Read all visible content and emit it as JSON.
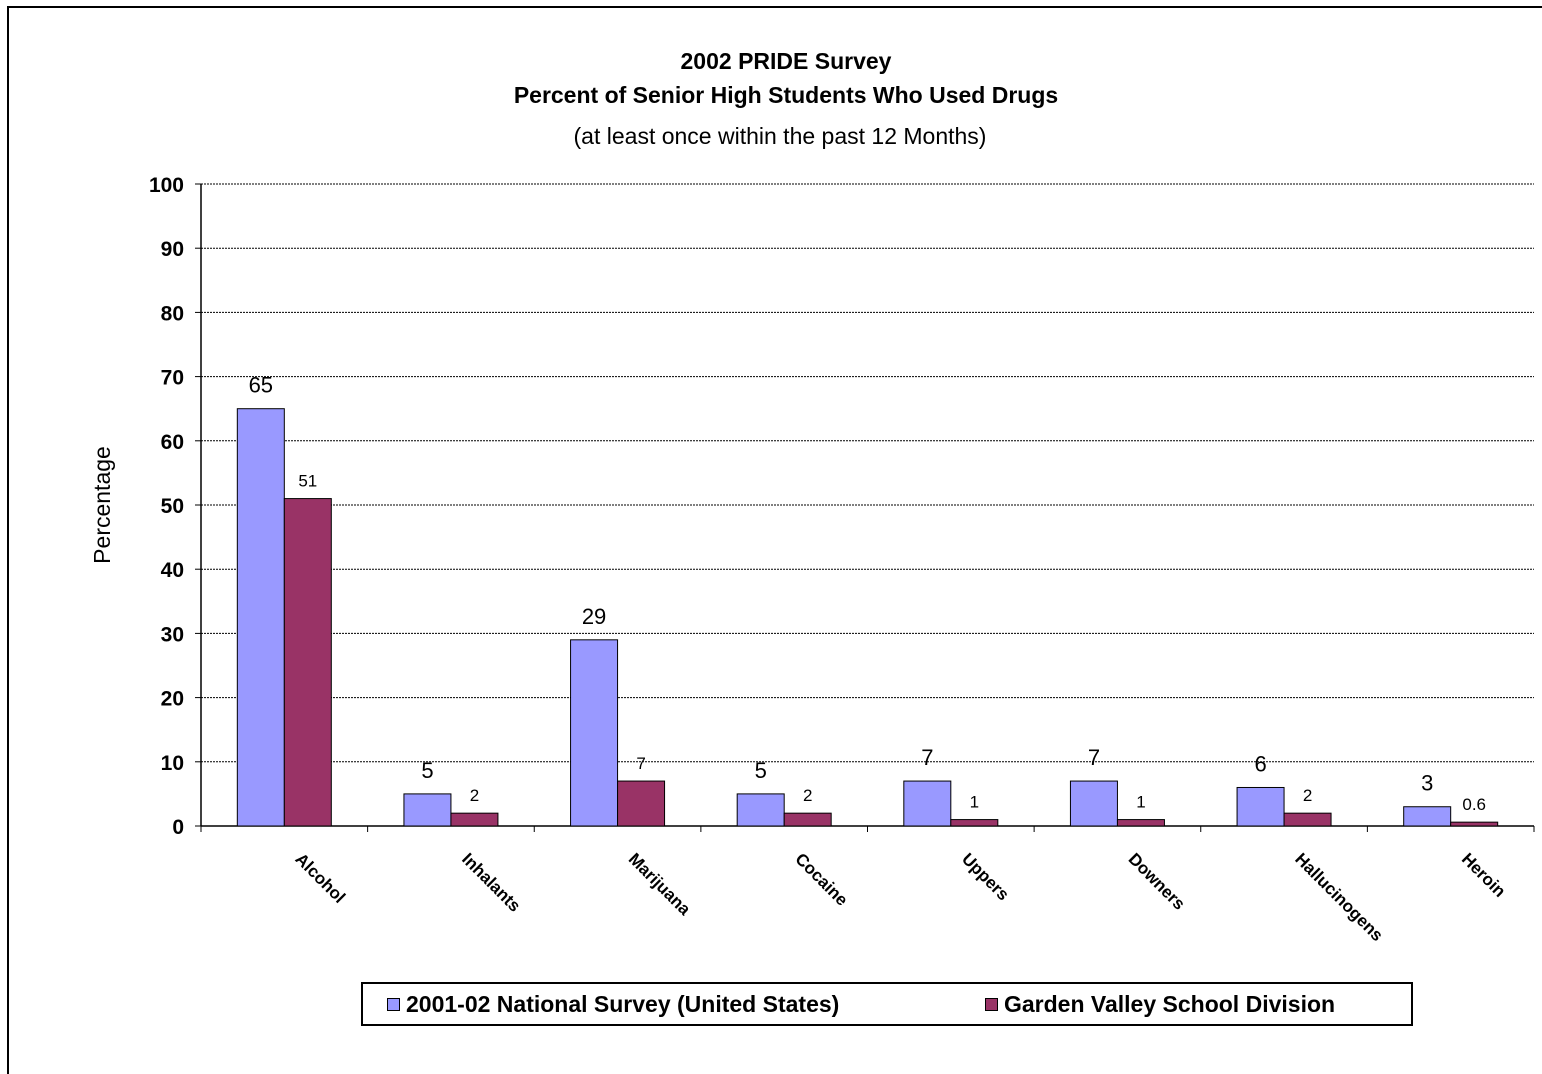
{
  "chart_data": {
    "type": "bar",
    "title": "2002 PRIDE Survey",
    "title_line2": "Percent of Senior High Students Who Used Drugs",
    "subtitle": "(at least once within the past 12 Months)",
    "ylabel": "Percentage",
    "xlabel": "",
    "ylim": [
      0,
      100
    ],
    "yticks": [
      "0",
      "10",
      "20",
      "30",
      "40",
      "50",
      "60",
      "70",
      "80",
      "90",
      "100"
    ],
    "grid": true,
    "legend_position": "bottom",
    "categories": [
      "Alcohol",
      "Inhalants",
      "Marijuana",
      "Cocaine",
      "Uppers",
      "Downers",
      "Hallucinogens",
      "Heroin"
    ],
    "series": [
      {
        "name": "2001-02 National Survey (United States)",
        "color": "#9999ff",
        "values": [
          65,
          5,
          29,
          5,
          7,
          7,
          6,
          3
        ],
        "labels": [
          "65",
          "5",
          "29",
          "5",
          "7",
          "7",
          "6",
          "3"
        ]
      },
      {
        "name": "Garden Valley School Division",
        "color": "#993366",
        "values": [
          51,
          2,
          7,
          2,
          1,
          1,
          2,
          0.6
        ],
        "labels": [
          "51",
          "2",
          "7",
          "2",
          "1",
          "1",
          "2",
          "0.6"
        ]
      }
    ]
  }
}
